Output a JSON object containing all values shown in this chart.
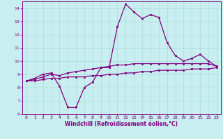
{
  "title": "",
  "xlabel": "Windchill (Refroidissement éolien,°C)",
  "ylabel": "",
  "bg_color": "#c8eef0",
  "line_color": "#800080",
  "x_values": [
    0,
    1,
    2,
    3,
    4,
    5,
    6,
    7,
    8,
    9,
    10,
    11,
    12,
    13,
    14,
    15,
    16,
    17,
    18,
    19,
    20,
    21,
    22,
    23
  ],
  "series1": [
    8.5,
    8.7,
    9.0,
    9.1,
    8.1,
    6.5,
    6.5,
    8.0,
    8.4,
    9.5,
    9.5,
    12.6,
    14.3,
    13.7,
    13.2,
    13.5,
    13.3,
    11.4,
    10.4,
    10.0,
    10.2,
    10.5,
    10.0,
    9.6
  ],
  "series2": [
    8.5,
    8.6,
    8.8,
    9.0,
    8.9,
    9.1,
    9.2,
    9.3,
    9.4,
    9.5,
    9.6,
    9.7,
    9.7,
    9.8,
    9.8,
    9.8,
    9.8,
    9.8,
    9.8,
    9.8,
    9.8,
    9.8,
    9.8,
    9.6
  ],
  "series3": [
    8.5,
    8.5,
    8.6,
    8.7,
    8.7,
    8.8,
    8.8,
    8.8,
    8.9,
    8.9,
    9.0,
    9.0,
    9.1,
    9.1,
    9.2,
    9.2,
    9.3,
    9.3,
    9.3,
    9.3,
    9.4,
    9.4,
    9.4,
    9.5
  ],
  "ylim": [
    6,
    14.5
  ],
  "xlim": [
    -0.5,
    23.5
  ],
  "yticks": [
    6,
    7,
    8,
    9,
    10,
    11,
    12,
    13,
    14
  ],
  "xticks": [
    0,
    1,
    2,
    3,
    4,
    5,
    6,
    7,
    8,
    9,
    10,
    11,
    12,
    13,
    14,
    15,
    16,
    17,
    18,
    19,
    20,
    21,
    22,
    23
  ],
  "grid_color": "#aadddd",
  "font_size_ticks": 4.5,
  "font_size_xlabel": 5.5
}
